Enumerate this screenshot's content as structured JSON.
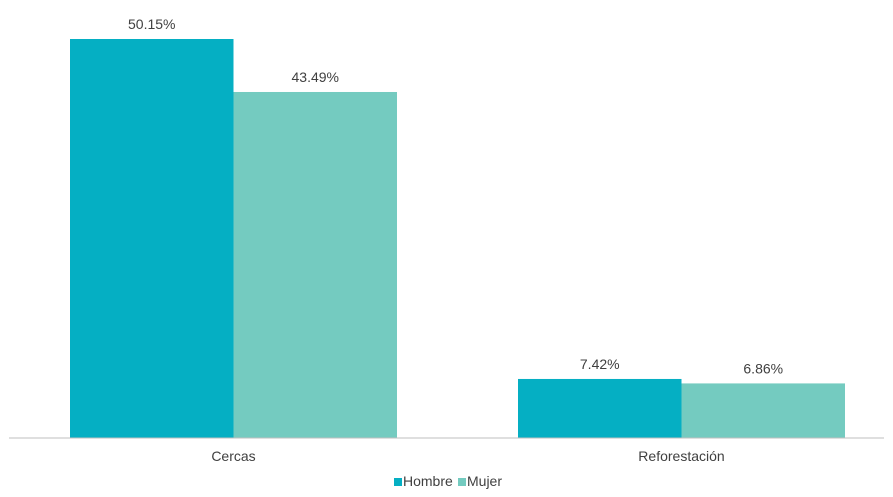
{
  "chart_data": {
    "type": "bar",
    "title": "",
    "xlabel": "",
    "ylabel": "",
    "categories": [
      "Cercas",
      "Reforestación"
    ],
    "series": [
      {
        "name": "Hombre",
        "values": [
          50.15,
          7.42
        ],
        "labels": [
          "50.15%",
          "7.42%"
        ],
        "color": "#05AFC3"
      },
      {
        "name": "Mujer",
        "values": [
          43.49,
          6.86
        ],
        "labels": [
          "43.49%",
          "6.86%"
        ],
        "color": "#74CBC0"
      }
    ],
    "ylim": [
      0,
      50.15
    ],
    "value_suffix": "%",
    "grid": false,
    "legend": "bottom-center"
  }
}
